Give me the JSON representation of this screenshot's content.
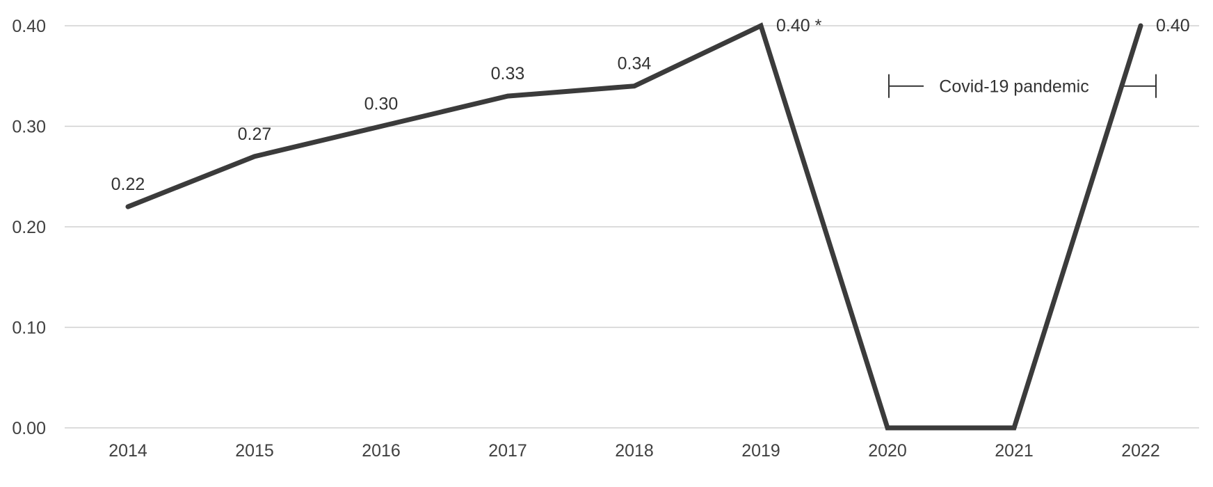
{
  "chart_data": {
    "type": "line",
    "title": "",
    "xlabel": "",
    "ylabel": "",
    "x": [
      "2014",
      "2015",
      "2016",
      "2017",
      "2018",
      "2019",
      "2020",
      "2021",
      "2022"
    ],
    "series": [
      {
        "values": [
          0.22,
          0.27,
          0.3,
          0.33,
          0.34,
          0.4,
          0.0,
          0.0,
          0.4
        ]
      }
    ],
    "data_labels": [
      "0.22",
      "0.27",
      "0.30",
      "0.33",
      "0.34",
      "0.40 *",
      "",
      "",
      "0.40"
    ],
    "y_ticks": [
      "0.00",
      "0.10",
      "0.20",
      "0.30",
      "0.40"
    ],
    "ylim": [
      0,
      0.4
    ],
    "grid": "horizontal",
    "annotation": {
      "text": "Covid-19 pandemic",
      "span": [
        "2020",
        "2022"
      ]
    },
    "colors": {
      "line": "#3b3b3b",
      "grid": "#d0d0d0",
      "axis_text": "#404040"
    }
  }
}
